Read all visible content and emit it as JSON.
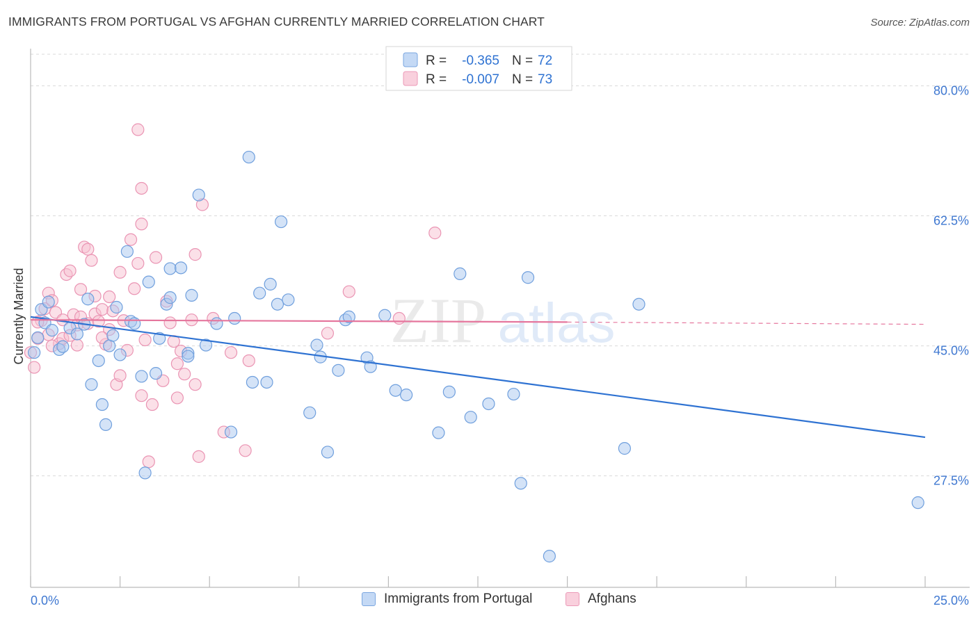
{
  "title": "IMMIGRANTS FROM PORTUGAL VS AFGHAN CURRENTLY MARRIED CORRELATION CHART",
  "source": "Source: ZipAtlas.com",
  "watermark": {
    "zip": "ZIP",
    "atlas": "atlas"
  },
  "colors": {
    "blue_fill": "#a9c8ef",
    "blue_stroke": "#6f9fdd",
    "blue_line": "#2e72d2",
    "pink_fill": "#f7c1d2",
    "pink_stroke": "#ea94b3",
    "pink_line": "#e5769d",
    "axis_label": "#3f78d1",
    "grid": "#d9d9d9"
  },
  "legend": {
    "r_label": "R =",
    "n_label": "N =",
    "entries": [
      {
        "r": "-0.365",
        "n": "72"
      },
      {
        "r": "-0.007",
        "n": "73"
      }
    ]
  },
  "chart_data": {
    "type": "scatter",
    "title": "IMMIGRANTS FROM PORTUGAL VS AFGHAN CURRENTLY MARRIED CORRELATION CHART",
    "xlabel": "",
    "ylabel": "Currently Married",
    "xlim": [
      0,
      25
    ],
    "ylim": [
      12.5,
      85
    ],
    "x_tick_labels": [
      "0.0%",
      "25.0%"
    ],
    "y_ticks": [
      27.5,
      45.0,
      62.5,
      80.0
    ],
    "y_tick_labels": [
      "27.5%",
      "45.0%",
      "62.5%",
      "80.0%"
    ],
    "grid": true,
    "series": [
      {
        "name": "Immigrants from Portugal",
        "color": "blue",
        "trend": {
          "x": [
            0,
            25
          ],
          "y": [
            48.9,
            32.7
          ],
          "dashed_from": null
        },
        "points": [
          [
            0.1,
            44.1
          ],
          [
            0.2,
            46.1
          ],
          [
            0.3,
            49.9
          ],
          [
            0.4,
            48.1
          ],
          [
            0.5,
            50.9
          ],
          [
            0.6,
            47.1
          ],
          [
            0.8,
            44.5
          ],
          [
            0.9,
            44.9
          ],
          [
            1.1,
            47.4
          ],
          [
            1.3,
            46.6
          ],
          [
            1.5,
            47.9
          ],
          [
            1.6,
            51.3
          ],
          [
            1.7,
            39.8
          ],
          [
            1.9,
            43.0
          ],
          [
            2.0,
            37.1
          ],
          [
            2.1,
            34.4
          ],
          [
            2.2,
            45.0
          ],
          [
            2.3,
            46.4
          ],
          [
            2.4,
            50.2
          ],
          [
            2.5,
            43.8
          ],
          [
            2.7,
            57.7
          ],
          [
            2.8,
            48.3
          ],
          [
            2.9,
            48.0
          ],
          [
            3.1,
            40.9
          ],
          [
            3.2,
            27.9
          ],
          [
            3.3,
            53.6
          ],
          [
            3.5,
            41.3
          ],
          [
            3.6,
            46.0
          ],
          [
            3.8,
            50.6
          ],
          [
            3.9,
            51.5
          ],
          [
            3.9,
            55.4
          ],
          [
            4.2,
            55.5
          ],
          [
            4.4,
            44.0
          ],
          [
            4.4,
            43.6
          ],
          [
            4.5,
            51.8
          ],
          [
            4.7,
            65.3
          ],
          [
            4.9,
            45.1
          ],
          [
            5.2,
            48.0
          ],
          [
            5.6,
            33.4
          ],
          [
            5.7,
            48.7
          ],
          [
            6.1,
            70.4
          ],
          [
            6.2,
            40.1
          ],
          [
            6.4,
            52.1
          ],
          [
            6.6,
            40.1
          ],
          [
            6.7,
            53.3
          ],
          [
            6.9,
            50.6
          ],
          [
            7.0,
            61.7
          ],
          [
            7.2,
            51.2
          ],
          [
            7.8,
            36.0
          ],
          [
            8.0,
            45.1
          ],
          [
            8.1,
            43.5
          ],
          [
            8.3,
            30.7
          ],
          [
            8.6,
            41.7
          ],
          [
            8.8,
            48.5
          ],
          [
            8.9,
            48.9
          ],
          [
            9.4,
            43.4
          ],
          [
            9.5,
            42.2
          ],
          [
            9.9,
            49.1
          ],
          [
            10.2,
            39.0
          ],
          [
            10.5,
            38.4
          ],
          [
            11.4,
            33.3
          ],
          [
            11.7,
            38.8
          ],
          [
            12.0,
            54.7
          ],
          [
            12.3,
            35.4
          ],
          [
            12.8,
            37.2
          ],
          [
            13.5,
            38.5
          ],
          [
            13.7,
            26.5
          ],
          [
            13.9,
            54.2
          ],
          [
            14.5,
            16.7
          ],
          [
            16.6,
            31.2
          ],
          [
            17.0,
            50.6
          ],
          [
            24.8,
            23.9
          ]
        ]
      },
      {
        "name": "Afghans",
        "color": "pink",
        "trend": {
          "x": [
            0,
            15
          ],
          "y": [
            48.5,
            48.2
          ],
          "dashed_to": [
            25,
            47.9
          ]
        },
        "points": [
          [
            0.0,
            44.1
          ],
          [
            0.1,
            42.1
          ],
          [
            0.2,
            46.0
          ],
          [
            0.3,
            48.4
          ],
          [
            0.4,
            50.0
          ],
          [
            0.5,
            46.5
          ],
          [
            0.5,
            52.1
          ],
          [
            0.6,
            51.1
          ],
          [
            0.7,
            49.5
          ],
          [
            0.8,
            45.3
          ],
          [
            0.9,
            46.0
          ],
          [
            0.9,
            48.5
          ],
          [
            1.0,
            54.6
          ],
          [
            1.1,
            55.1
          ],
          [
            1.2,
            49.2
          ],
          [
            1.3,
            47.8
          ],
          [
            1.3,
            45.1
          ],
          [
            1.4,
            48.9
          ],
          [
            1.4,
            52.6
          ],
          [
            1.5,
            58.3
          ],
          [
            1.6,
            58.0
          ],
          [
            1.6,
            48.0
          ],
          [
            1.7,
            56.5
          ],
          [
            1.8,
            49.3
          ],
          [
            1.8,
            51.7
          ],
          [
            1.9,
            48.3
          ],
          [
            2.0,
            49.9
          ],
          [
            2.1,
            45.2
          ],
          [
            2.2,
            47.2
          ],
          [
            2.2,
            51.6
          ],
          [
            2.3,
            49.7
          ],
          [
            2.4,
            39.8
          ],
          [
            2.5,
            41.0
          ],
          [
            2.5,
            54.9
          ],
          [
            2.6,
            48.4
          ],
          [
            2.7,
            44.4
          ],
          [
            2.8,
            59.3
          ],
          [
            2.9,
            52.7
          ],
          [
            3.0,
            56.1
          ],
          [
            3.1,
            38.3
          ],
          [
            3.1,
            66.2
          ],
          [
            3.1,
            61.4
          ],
          [
            3.2,
            45.8
          ],
          [
            3.3,
            29.4
          ],
          [
            3.4,
            37.1
          ],
          [
            3.5,
            56.9
          ],
          [
            3.7,
            40.3
          ],
          [
            3.8,
            51.0
          ],
          [
            3.9,
            48.1
          ],
          [
            4.0,
            45.6
          ],
          [
            4.1,
            42.6
          ],
          [
            4.2,
            44.3
          ],
          [
            4.3,
            41.2
          ],
          [
            4.5,
            48.5
          ],
          [
            4.6,
            57.3
          ],
          [
            4.6,
            39.8
          ],
          [
            4.7,
            30.1
          ],
          [
            4.8,
            64.0
          ],
          [
            5.1,
            48.7
          ],
          [
            5.4,
            33.4
          ],
          [
            5.6,
            44.1
          ],
          [
            6.0,
            30.9
          ],
          [
            6.1,
            43.0
          ],
          [
            8.3,
            46.7
          ],
          [
            3.0,
            74.1
          ],
          [
            8.9,
            52.3
          ],
          [
            10.3,
            48.7
          ],
          [
            11.3,
            60.2
          ],
          [
            0.2,
            48.2
          ],
          [
            0.6,
            45.0
          ],
          [
            1.1,
            46.4
          ],
          [
            2.0,
            46.1
          ],
          [
            4.1,
            38.0
          ]
        ]
      }
    ]
  },
  "bottom_legend": [
    "Immigrants from Portugal",
    "Afghans"
  ]
}
